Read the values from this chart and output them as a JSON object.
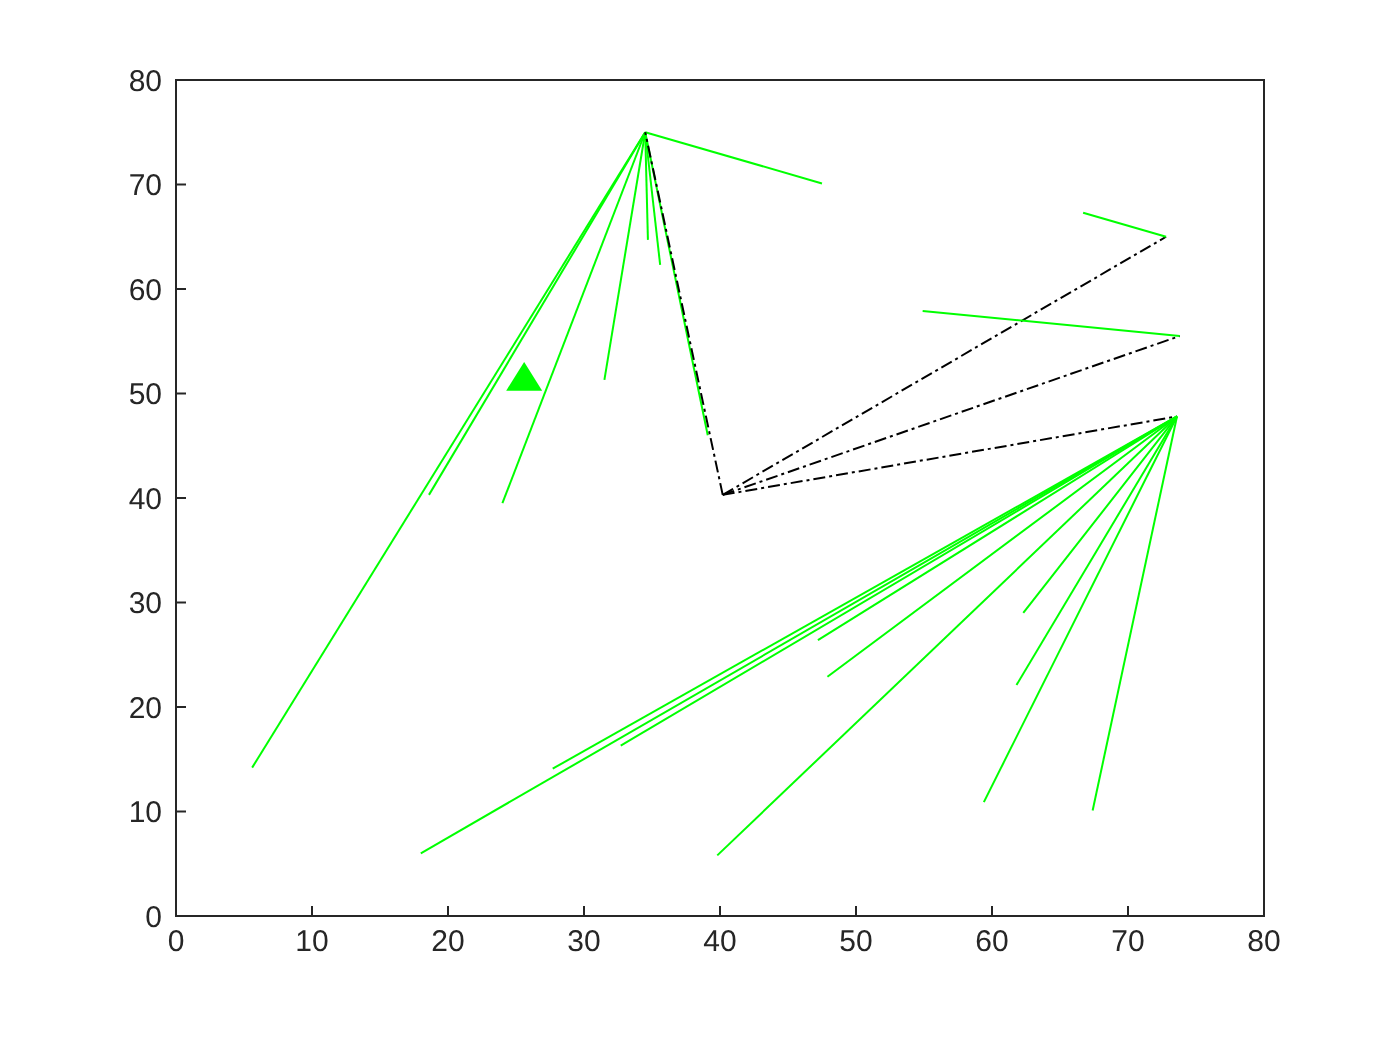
{
  "chart_data": {
    "type": "line",
    "xlim": [
      0,
      80
    ],
    "ylim": [
      0,
      80
    ],
    "xticks": [
      0,
      10,
      20,
      30,
      40,
      50,
      60,
      70,
      80
    ],
    "yticks": [
      0,
      10,
      20,
      30,
      40,
      50,
      60,
      70,
      80
    ],
    "grid": false,
    "marker": "none",
    "series": [
      {
        "x": [
          40.2,
          72.8
        ],
        "values": [
          40.3,
          65
        ],
        "color": "#000000",
        "line_style": "dashdot"
      },
      {
        "x": [
          40.2,
          73.8
        ],
        "values": [
          40.3,
          55.5
        ],
        "color": "#000000",
        "line_style": "dashdot"
      },
      {
        "x": [
          40.2,
          73.6
        ],
        "values": [
          40.3,
          47.8
        ],
        "color": "#000000",
        "line_style": "dashdot"
      },
      {
        "x": [
          34.5,
          39.1
        ],
        "values": [
          75,
          46
        ],
        "color": "#00ff00",
        "line_style": "solid"
      },
      {
        "x": [
          34.5,
          5.6
        ],
        "values": [
          75,
          14.2
        ],
        "color": "#00ff00",
        "line_style": "solid"
      },
      {
        "x": [
          34.5,
          18.6
        ],
        "values": [
          75,
          40.3
        ],
        "color": "#00ff00",
        "line_style": "solid"
      },
      {
        "x": [
          34.5,
          24.0
        ],
        "values": [
          75,
          39.5
        ],
        "color": "#00ff00",
        "line_style": "solid"
      },
      {
        "x": [
          34.5,
          31.5
        ],
        "values": [
          75,
          51.3
        ],
        "color": "#00ff00",
        "line_style": "solid"
      },
      {
        "x": [
          34.5,
          34.7
        ],
        "values": [
          75,
          64.7
        ],
        "color": "#00ff00",
        "line_style": "solid"
      },
      {
        "x": [
          34.5,
          35.6
        ],
        "values": [
          75,
          62.3
        ],
        "color": "#00ff00",
        "line_style": "solid"
      },
      {
        "x": [
          34.5,
          47.5
        ],
        "values": [
          75,
          70.1
        ],
        "color": "#00ff00",
        "line_style": "solid"
      },
      {
        "x": [
          73.8,
          54.9
        ],
        "values": [
          55.5,
          57.9
        ],
        "color": "#00ff00",
        "line_style": "solid"
      },
      {
        "x": [
          72.8,
          66.7
        ],
        "values": [
          65,
          67.3
        ],
        "color": "#00ff00",
        "line_style": "solid"
      },
      {
        "x": [
          73.6,
          18.0
        ],
        "values": [
          47.8,
          6.0
        ],
        "color": "#00ff00",
        "line_style": "solid"
      },
      {
        "x": [
          73.6,
          27.7
        ],
        "values": [
          47.8,
          14.1
        ],
        "color": "#00ff00",
        "line_style": "solid"
      },
      {
        "x": [
          73.6,
          32.7
        ],
        "values": [
          47.8,
          16.3
        ],
        "color": "#00ff00",
        "line_style": "solid"
      },
      {
        "x": [
          73.6,
          47.2
        ],
        "values": [
          47.8,
          26.4
        ],
        "color": "#00ff00",
        "line_style": "solid"
      },
      {
        "x": [
          73.6,
          47.9
        ],
        "values": [
          47.8,
          22.9
        ],
        "color": "#00ff00",
        "line_style": "solid"
      },
      {
        "x": [
          73.6,
          39.8
        ],
        "values": [
          47.8,
          5.8
        ],
        "color": "#00ff00",
        "line_style": "solid"
      },
      {
        "x": [
          73.6,
          62.3
        ],
        "values": [
          47.8,
          29.0
        ],
        "color": "#00ff00",
        "line_style": "solid"
      },
      {
        "x": [
          73.6,
          61.8
        ],
        "values": [
          47.8,
          22.1
        ],
        "color": "#00ff00",
        "line_style": "solid"
      },
      {
        "x": [
          73.6,
          59.4
        ],
        "values": [
          47.8,
          10.9
        ],
        "color": "#00ff00",
        "line_style": "solid"
      },
      {
        "x": [
          73.6,
          67.4
        ],
        "values": [
          47.8,
          10.1
        ],
        "color": "#00ff00",
        "line_style": "solid"
      },
      {
        "x": [
          40.2,
          34.5
        ],
        "values": [
          40.3,
          75
        ],
        "color": "#000000",
        "line_style": "dashdot"
      },
      {
        "type": "scatter",
        "marker": "triangle",
        "x": [
          25.6
        ],
        "values": [
          51.3
        ],
        "color": "#00ff00"
      }
    ]
  }
}
